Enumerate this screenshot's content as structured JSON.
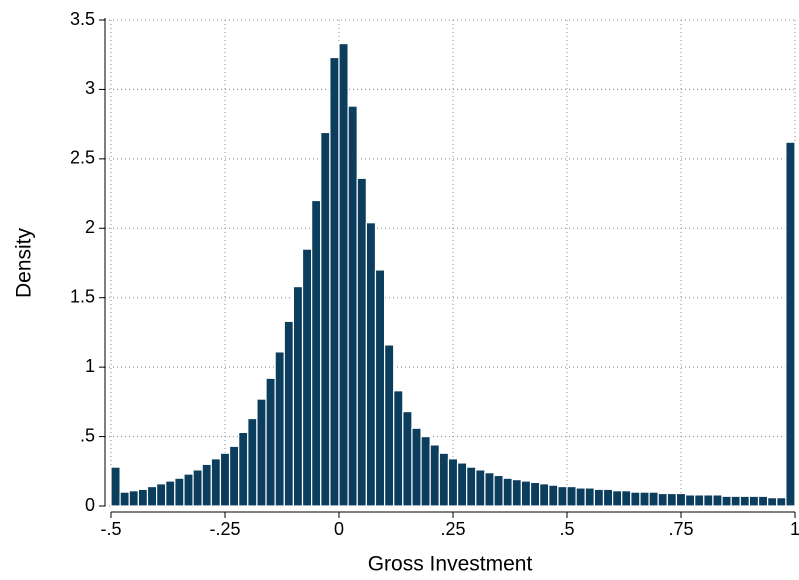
{
  "chart_data": {
    "type": "histogram",
    "xlabel": "Gross Investment",
    "ylabel": "Density",
    "color": "#0b3d5c",
    "grid": true,
    "bins": [
      -0.5,
      -0.48,
      -0.46,
      -0.44,
      -0.42,
      -0.4,
      -0.38,
      -0.36,
      -0.34,
      -0.32,
      -0.3,
      -0.28,
      -0.26,
      -0.24,
      -0.22,
      -0.2,
      -0.18,
      -0.16,
      -0.14,
      -0.12,
      -0.1,
      -0.08,
      -0.06,
      -0.04,
      -0.02,
      0,
      0.02,
      0.04,
      0.06,
      0.08,
      0.1,
      0.12,
      0.14,
      0.16,
      0.18,
      0.2,
      0.22,
      0.24,
      0.26,
      0.28,
      0.3,
      0.32,
      0.34,
      0.36,
      0.38,
      0.4,
      0.42,
      0.44,
      0.46,
      0.48,
      0.5,
      0.52,
      0.54,
      0.56,
      0.58,
      0.6,
      0.62,
      0.64,
      0.66,
      0.68,
      0.7,
      0.72,
      0.74,
      0.76,
      0.78,
      0.8,
      0.82,
      0.84,
      0.86,
      0.88,
      0.9,
      0.92,
      0.94,
      0.96,
      0.98,
      1
    ],
    "counts": [
      0.28,
      0.1,
      0.11,
      0.12,
      0.14,
      0.16,
      0.18,
      0.2,
      0.23,
      0.26,
      0.3,
      0.34,
      0.38,
      0.43,
      0.53,
      0.63,
      0.77,
      0.92,
      1.11,
      1.33,
      1.58,
      1.85,
      2.2,
      2.69,
      3.23,
      3.33,
      2.88,
      2.36,
      2.04,
      1.7,
      1.16,
      0.83,
      0.68,
      0.56,
      0.5,
      0.44,
      0.38,
      0.34,
      0.31,
      0.28,
      0.26,
      0.24,
      0.22,
      0.2,
      0.19,
      0.18,
      0.17,
      0.16,
      0.15,
      0.14,
      0.14,
      0.13,
      0.13,
      0.12,
      0.12,
      0.11,
      0.11,
      0.1,
      0.1,
      0.1,
      0.09,
      0.09,
      0.09,
      0.08,
      0.08,
      0.08,
      0.08,
      0.07,
      0.07,
      0.07,
      0.07,
      0.07,
      0.06,
      0.06,
      2.62
    ],
    "xlim": [
      -0.5,
      1
    ],
    "ylim": [
      0,
      3.5
    ],
    "xticks": [
      {
        "value": -0.5,
        "label": "-.5"
      },
      {
        "value": -0.25,
        "label": "-.25"
      },
      0,
      {
        "value": 0.25,
        "label": ".25"
      },
      {
        "value": 0.5,
        "label": ".5"
      },
      {
        "value": 0.75,
        "label": ".75"
      },
      1
    ],
    "yticks": [
      0,
      {
        "value": 0.5,
        "label": ".5"
      },
      1,
      1.5,
      2,
      2.5,
      3,
      3.5
    ]
  }
}
